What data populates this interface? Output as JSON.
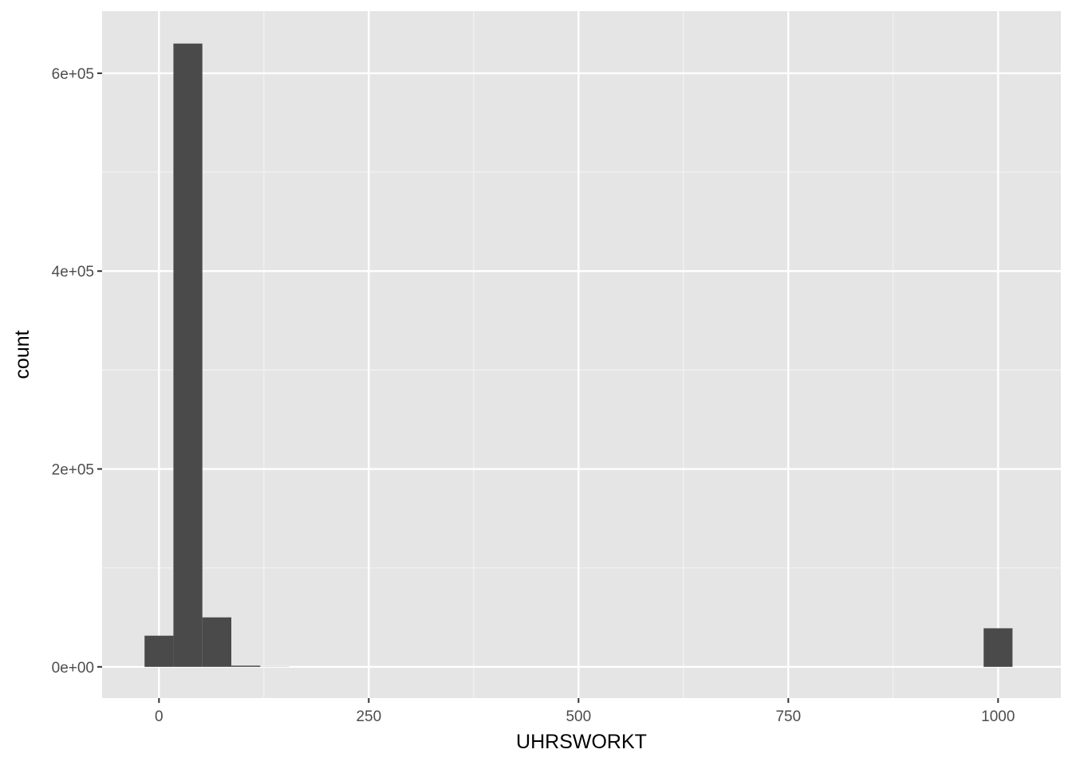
{
  "chart_data": {
    "type": "bar",
    "subtype": "histogram",
    "title": "",
    "xlabel": "UHRSWORKT",
    "ylabel": "count",
    "xlim": [
      -67.8,
      1074.8
    ],
    "ylim": [
      -31560,
      662760
    ],
    "x_ticks": [
      {
        "value": 0,
        "label": "0"
      },
      {
        "value": 250,
        "label": "250"
      },
      {
        "value": 500,
        "label": "500"
      },
      {
        "value": 750,
        "label": "750"
      },
      {
        "value": 1000,
        "label": "1000"
      }
    ],
    "x_minor_breaks": [
      125,
      375,
      625,
      875
    ],
    "y_ticks": [
      {
        "value": 0,
        "label": "0e+00"
      },
      {
        "value": 200000,
        "label": "2e+05"
      },
      {
        "value": 400000,
        "label": "4e+05"
      },
      {
        "value": 600000,
        "label": "6e+05"
      }
    ],
    "y_minor_breaks": [
      100000,
      300000,
      500000
    ],
    "bins": [
      {
        "x0": -17.2,
        "x1": 17.2,
        "count": 31500
      },
      {
        "x0": 17.2,
        "x1": 51.7,
        "count": 630000
      },
      {
        "x0": 51.7,
        "x1": 86.2,
        "count": 50000
      },
      {
        "x0": 86.2,
        "x1": 120.7,
        "count": 1200
      },
      {
        "x0": 120.7,
        "x1": 155.2,
        "count": 150
      },
      {
        "x0": 982.8,
        "x1": 1017.2,
        "count": 39000
      }
    ],
    "grid": true,
    "colors": {
      "panel_background": "#e5e5e5",
      "grid_major": "#ffffff",
      "grid_minor": "#f2f2f2",
      "bar_fill": "#4a4a4a",
      "tick_label": "#4d4d4d",
      "axis_tick": "#333333",
      "axis_title": "#000000"
    }
  }
}
